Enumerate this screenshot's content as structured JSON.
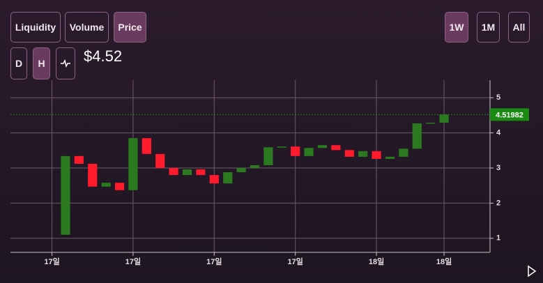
{
  "ui": {
    "metric_tabs": [
      "Liquidity",
      "Volume",
      "Price"
    ],
    "active_metric": "Price",
    "range_tabs": [
      "1W",
      "1M",
      "All"
    ],
    "active_range": "1W",
    "interval_tabs": [
      "D",
      "H"
    ],
    "active_interval": "H",
    "current_price": "$4.52"
  },
  "chart_data": {
    "type": "candlestick",
    "x": [
      0,
      1,
      2,
      3,
      4,
      5,
      6,
      7,
      8,
      9,
      10,
      11,
      12,
      13,
      14,
      15,
      16,
      17,
      18,
      19,
      20,
      21,
      22,
      23,
      24,
      25,
      26,
      27,
      28
    ],
    "open": [
      1.1,
      3.34,
      3.12,
      2.47,
      2.58,
      2.37,
      3.85,
      3.4,
      3.0,
      2.8,
      2.96,
      2.8,
      2.56,
      2.88,
      3.0,
      3.08,
      3.59,
      3.61,
      3.34,
      3.57,
      3.65,
      3.51,
      3.32,
      3.48,
      3.26,
      3.32,
      3.55,
      4.27,
      4.29
    ],
    "close": [
      3.34,
      3.12,
      2.47,
      2.58,
      2.37,
      3.85,
      3.4,
      3.0,
      2.8,
      2.96,
      2.8,
      2.56,
      2.88,
      3.0,
      3.08,
      3.59,
      3.61,
      3.34,
      3.57,
      3.65,
      3.51,
      3.32,
      3.48,
      3.26,
      3.32,
      3.55,
      4.27,
      4.29,
      4.52
    ],
    "up_color": "#2b7a1f",
    "down_color": "#ff1a2c",
    "xlim": [
      -4.07,
      31.4
    ],
    "xticks": [
      {
        "value": -1,
        "label": "17일"
      },
      {
        "value": 5,
        "label": "17일"
      },
      {
        "value": 11,
        "label": "17일"
      },
      {
        "value": 17,
        "label": "17일"
      },
      {
        "value": 23,
        "label": "18일"
      },
      {
        "value": 28,
        "label": "18일"
      }
    ],
    "ylim": [
      0.6,
      5.5
    ],
    "yticks": [
      1,
      2,
      3,
      4,
      5
    ],
    "grid": true,
    "last_price": {
      "value": 4.51982,
      "label": "4.51982",
      "color": "#1a8a12"
    }
  }
}
